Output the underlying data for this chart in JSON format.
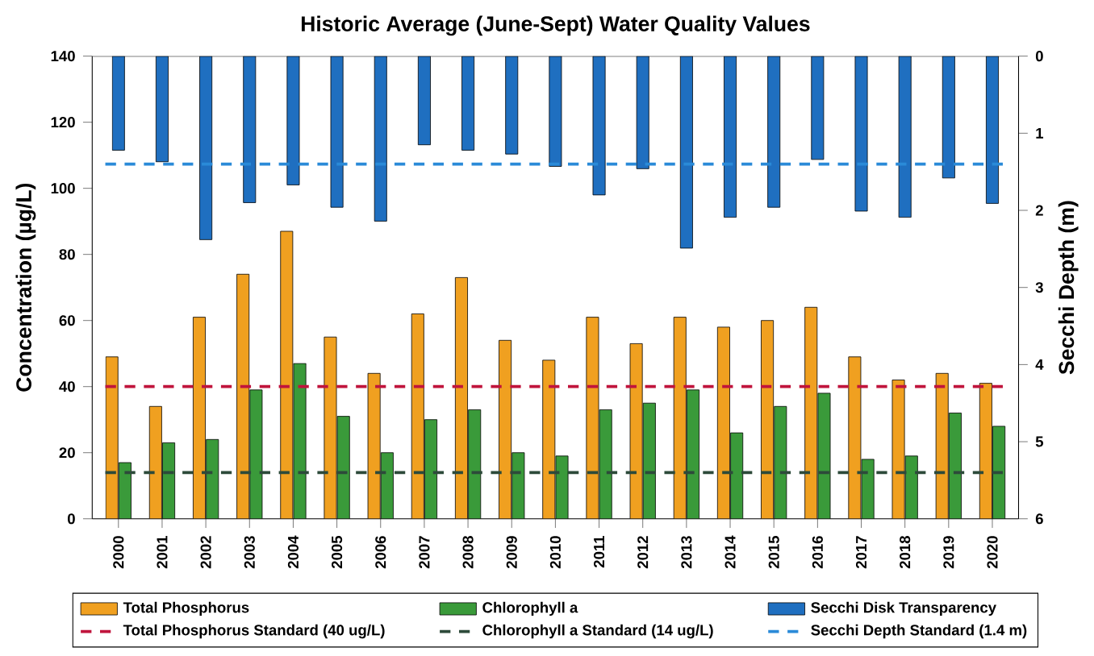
{
  "chart_data": {
    "type": "bar",
    "title": "Historic Average (June-Sept) Water Quality Values",
    "ylabel": "Concentration (µg/L)",
    "y2label": "Secchi Depth (m)",
    "categories": [
      "2000",
      "2001",
      "2002",
      "2003",
      "2004",
      "2005",
      "2006",
      "2007",
      "2008",
      "2009",
      "2010",
      "2011",
      "2012",
      "2013",
      "2014",
      "2015",
      "2016",
      "2017",
      "2018",
      "2019",
      "2020"
    ],
    "series": [
      {
        "name": "Total Phosphorus",
        "color": "#f0a020",
        "values": [
          49,
          34,
          61,
          74,
          87,
          55,
          44,
          62,
          73,
          54,
          48,
          61,
          53,
          61,
          58,
          60,
          64,
          49,
          42,
          44,
          41
        ]
      },
      {
        "name": "Chlorophyll a",
        "color": "#3a9a3a",
        "values": [
          17,
          23,
          24,
          39,
          47,
          31,
          20,
          30,
          33,
          20,
          19,
          33,
          35,
          39,
          26,
          34,
          38,
          18,
          19,
          32,
          28
        ]
      },
      {
        "name": "Secchi Disk Transparency",
        "color": "#1f6fc0",
        "axis": "y2",
        "values": [
          1.22,
          1.37,
          2.38,
          1.9,
          1.67,
          1.96,
          2.14,
          1.15,
          1.22,
          1.27,
          1.43,
          1.8,
          1.46,
          2.49,
          2.09,
          1.96,
          1.34,
          2.01,
          2.09,
          1.58,
          1.91
        ]
      }
    ],
    "ylim": [
      0,
      140
    ],
    "yticks": [
      0,
      20,
      40,
      60,
      80,
      100,
      120,
      140
    ],
    "y2lim": [
      6,
      0
    ],
    "y2ticks": [
      0,
      1,
      2,
      3,
      4,
      5,
      6
    ],
    "ref_lines": [
      {
        "axis": "y",
        "value": 40,
        "label": "Total Phosphorus Standard (40 ug/L)",
        "color": "#c0143c",
        "line_style": "dashed"
      },
      {
        "axis": "y",
        "value": 14,
        "label": "Chlorophyll a Standard (14 ug/L)",
        "color": "#2d4a3a",
        "line_style": "dashed"
      },
      {
        "axis": "y2",
        "value": 1.4,
        "label": "Secchi Depth Standard (1.4 m)",
        "color": "#2a8ad8",
        "line_style": "dashed"
      }
    ],
    "legend": "bottom"
  }
}
